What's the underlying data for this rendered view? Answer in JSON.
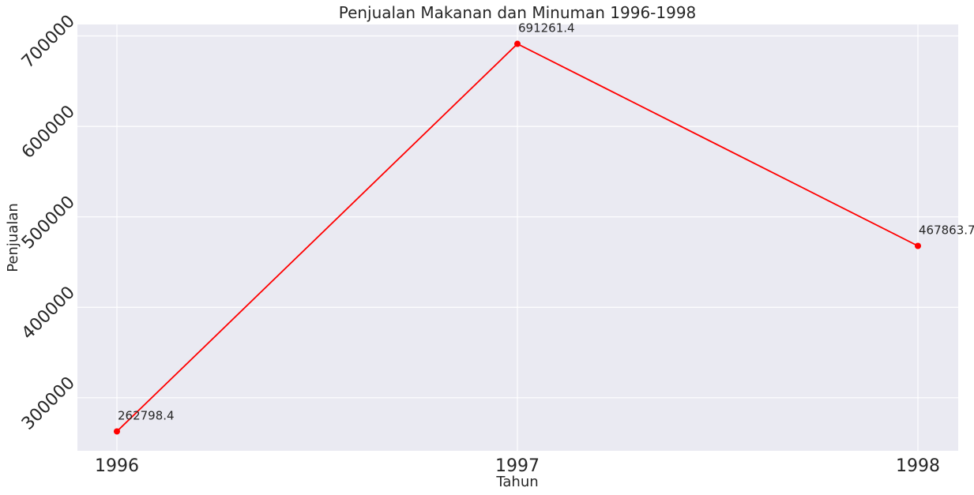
{
  "chart_data": {
    "type": "line",
    "title": "Penjualan Makanan dan Minuman 1996-1998",
    "xlabel": "Tahun",
    "ylabel": "Penjualan",
    "x": [
      "1996",
      "1997",
      "1998"
    ],
    "series": [
      {
        "values": [
          262798.4,
          691261.4,
          467863.7
        ],
        "data_labels": [
          "262798.4",
          "691261.4",
          "467863.7"
        ],
        "color": "#ff0000"
      }
    ],
    "y_ticks": [
      300000,
      400000,
      500000,
      600000,
      700000
    ],
    "y_tick_labels": [
      "300000",
      "400000",
      "500000",
      "600000",
      "700000"
    ],
    "ylim": [
      241375.25,
      712684.55
    ],
    "grid": true,
    "legend": "none",
    "colors": {
      "background": "#eaeaf2",
      "grid": "#ffffff",
      "line": "#ff0000"
    }
  }
}
